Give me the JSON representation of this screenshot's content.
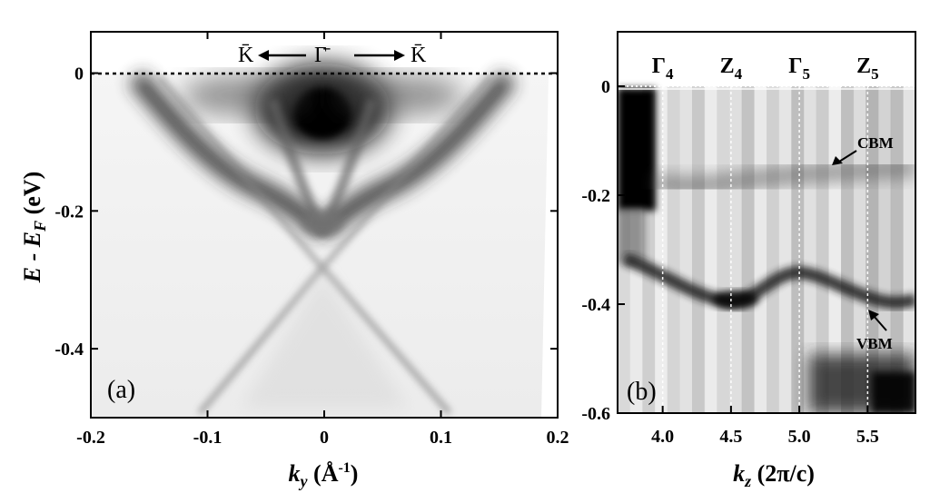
{
  "chart_data": [
    {
      "type": "heatmap",
      "panel_label": "(a)",
      "ylabel": "E - E_F (eV)",
      "ylabel_parts": {
        "main": "E - E",
        "sub": "F",
        "tail": " (eV)"
      },
      "xlabel_parts": {
        "main": "k",
        "sub": "y",
        "tail1": " (Å",
        "sup": "-1",
        "tail2": ")"
      },
      "xlim": [
        -0.2,
        0.2
      ],
      "ylim": [
        -0.5,
        0.06
      ],
      "x_ticks": [
        "-0.2",
        "-0.1",
        "0",
        "0.1",
        "0.2"
      ],
      "x_tick_values": [
        -0.2,
        -0.1,
        0,
        0.1,
        0.2
      ],
      "y_ticks": [
        "0",
        "-0.2",
        "-0.4"
      ],
      "y_tick_values": [
        0,
        -0.2,
        -0.4
      ],
      "fermi_level": 0,
      "dirac_point": {
        "k": 0,
        "E": -0.29
      },
      "direction_labels": [
        "K̄",
        "Γ̄",
        "K̄"
      ],
      "colormap": "white-to-black intensity"
    },
    {
      "type": "heatmap",
      "panel_label": "(b)",
      "xlabel_parts": {
        "main": "k",
        "sub": "z",
        "tail": " (2π/c)"
      },
      "xlim": [
        3.67,
        5.85
      ],
      "ylim": [
        -0.6,
        0.1
      ],
      "x_ticks": [
        "4.0",
        "4.5",
        "5.0",
        "5.5"
      ],
      "x_tick_values": [
        4.0,
        4.5,
        5.0,
        5.5
      ],
      "y_ticks": [
        "0",
        "-0.2",
        "-0.4",
        "-0.6"
      ],
      "y_tick_values": [
        0,
        -0.2,
        -0.4,
        -0.6
      ],
      "high_symmetry_points": [
        {
          "name": "Γ",
          "sub": "4",
          "kz": 4.0
        },
        {
          "name": "Z",
          "sub": "4",
          "kz": 4.5
        },
        {
          "name": "Γ",
          "sub": "5",
          "kz": 5.0
        },
        {
          "name": "Z",
          "sub": "5",
          "kz": 5.5
        }
      ],
      "annotations": [
        {
          "text": "CBM",
          "kz": 5.25,
          "E": -0.15
        },
        {
          "text": "VBM",
          "kz": 5.5,
          "E": -0.41
        }
      ],
      "colormap": "white-to-black intensity"
    }
  ]
}
